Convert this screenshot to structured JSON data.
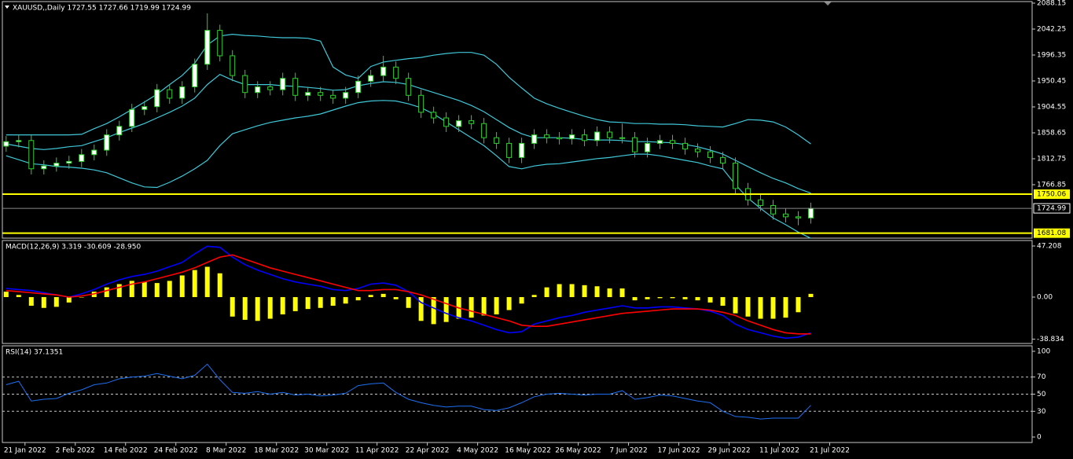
{
  "chart_data": [
    {
      "type": "candlestick",
      "title": "XAUUSD,,Daily  1727.55 1727.66 1719.99 1724.99",
      "xlim": [
        -0.3,
        81.6
      ],
      "ylim": [
        1672.25,
        2090.93
      ],
      "yticks": [
        2088.15,
        2042.25,
        1996.35,
        1950.45,
        1904.55,
        1858.65,
        1812.75,
        1766.85
      ],
      "up_color": "#ffffff",
      "down_color": "#000000",
      "wick_color": "#32cd32",
      "open": [
        1835,
        1843,
        1845,
        1795,
        1800,
        1805,
        1808,
        1820,
        1828,
        1855,
        1870,
        1900,
        1905,
        1935,
        1920,
        1940,
        1980,
        2040,
        1995,
        1960,
        1930,
        1940,
        1935,
        1955,
        1925,
        1930,
        1925,
        1920,
        1930,
        1950,
        1960,
        1975,
        1955,
        1925,
        1895,
        1885,
        1870,
        1880,
        1875,
        1850,
        1840,
        1815,
        1840,
        1855,
        1850,
        1848,
        1855,
        1845,
        1860,
        1850,
        1850,
        1825,
        1840,
        1845,
        1840,
        1830,
        1825,
        1815,
        1805,
        1760,
        1740,
        1730,
        1715,
        1710,
        1708
      ],
      "high": [
        1853,
        1855,
        1855,
        1810,
        1815,
        1818,
        1830,
        1838,
        1865,
        1880,
        1910,
        1915,
        1945,
        1945,
        1950,
        1990,
        2070,
        2050,
        2005,
        1970,
        1950,
        1950,
        1965,
        1965,
        1940,
        1940,
        1935,
        1940,
        1960,
        1970,
        1995,
        1985,
        1965,
        1935,
        1905,
        1895,
        1890,
        1890,
        1885,
        1860,
        1850,
        1850,
        1865,
        1865,
        1860,
        1865,
        1865,
        1870,
        1870,
        1875,
        1860,
        1850,
        1855,
        1855,
        1850,
        1840,
        1835,
        1825,
        1815,
        1770,
        1750,
        1740,
        1725,
        1720,
        1735
      ],
      "low": [
        1825,
        1833,
        1785,
        1785,
        1790,
        1795,
        1798,
        1810,
        1818,
        1845,
        1860,
        1890,
        1895,
        1910,
        1910,
        1930,
        1970,
        1985,
        1950,
        1920,
        1920,
        1925,
        1925,
        1915,
        1915,
        1915,
        1910,
        1910,
        1920,
        1940,
        1950,
        1945,
        1915,
        1885,
        1875,
        1860,
        1860,
        1865,
        1840,
        1830,
        1805,
        1805,
        1830,
        1840,
        1838,
        1838,
        1835,
        1835,
        1840,
        1840,
        1815,
        1815,
        1830,
        1830,
        1820,
        1815,
        1805,
        1795,
        1750,
        1730,
        1720,
        1705,
        1700,
        1695,
        1698
      ],
      "close": [
        1843,
        1845,
        1795,
        1800,
        1805,
        1808,
        1820,
        1828,
        1855,
        1870,
        1900,
        1905,
        1935,
        1920,
        1940,
        1980,
        2040,
        1995,
        1960,
        1930,
        1940,
        1935,
        1955,
        1925,
        1930,
        1925,
        1920,
        1930,
        1950,
        1960,
        1975,
        1955,
        1925,
        1895,
        1885,
        1870,
        1880,
        1875,
        1850,
        1840,
        1815,
        1840,
        1855,
        1850,
        1848,
        1855,
        1845,
        1860,
        1850,
        1850,
        1825,
        1840,
        1845,
        1840,
        1830,
        1825,
        1815,
        1805,
        1760,
        1740,
        1730,
        1715,
        1710,
        1708,
        1725
      ],
      "bands": {
        "color": "#40c8d8",
        "upper": [
          1855,
          1855,
          1855,
          1855,
          1855,
          1855,
          1856,
          1866,
          1875,
          1887,
          1900,
          1913,
          1927,
          1944,
          1960,
          1982,
          2014,
          2030,
          2033,
          2031,
          2030,
          2028,
          2027,
          2027,
          2026,
          2021,
          1975,
          1961,
          1955,
          1976,
          1984,
          1987,
          1990,
          1992,
          1996,
          1999,
          2001,
          2001,
          1996,
          1980,
          1957,
          1938,
          1920,
          1910,
          1902,
          1895,
          1888,
          1882,
          1878,
          1877,
          1875,
          1875,
          1874,
          1874,
          1873,
          1871,
          1870,
          1869,
          1875,
          1882,
          1881,
          1878,
          1869,
          1855,
          1839
        ],
        "middle": [
          1839,
          1835,
          1831,
          1829,
          1831,
          1834,
          1836,
          1843,
          1850,
          1859,
          1867,
          1875,
          1885,
          1895,
          1906,
          1920,
          1944,
          1962,
          1952,
          1944,
          1944,
          1944,
          1942,
          1941,
          1939,
          1937,
          1934,
          1935,
          1942,
          1946,
          1949,
          1948,
          1944,
          1937,
          1930,
          1923,
          1916,
          1907,
          1896,
          1882,
          1868,
          1857,
          1850,
          1850,
          1850,
          1849,
          1847,
          1846,
          1846,
          1845,
          1843,
          1843,
          1842,
          1841,
          1838,
          1834,
          1828,
          1821,
          1810,
          1799,
          1788,
          1778,
          1770,
          1760,
          1752
        ],
        "lower": [
          1818,
          1811,
          1804,
          1802,
          1799,
          1798,
          1796,
          1793,
          1788,
          1779,
          1770,
          1763,
          1762,
          1771,
          1782,
          1795,
          1810,
          1836,
          1857,
          1864,
          1871,
          1877,
          1881,
          1885,
          1888,
          1892,
          1899,
          1906,
          1912,
          1915,
          1916,
          1915,
          1910,
          1903,
          1892,
          1878,
          1864,
          1850,
          1836,
          1818,
          1799,
          1795,
          1800,
          1803,
          1804,
          1807,
          1810,
          1813,
          1815,
          1818,
          1821,
          1821,
          1818,
          1814,
          1810,
          1806,
          1800,
          1795,
          1767,
          1743,
          1725,
          1708,
          1696,
          1683,
          1672
        ]
      },
      "levels": [
        1750.06,
        1681.08
      ],
      "level_color": "#ffff00",
      "last_price": 1724.99
    },
    {
      "type": "macd",
      "title": "MACD(12,26,9) 3.319 -30.609 -28.950",
      "xlim": [
        -0.3,
        81.6
      ],
      "ylim": [
        -42.85,
        52.29
      ],
      "yticks": [
        47.208,
        {
          "value": 0,
          "label": "0.00"
        },
        -38.834
      ],
      "hist_color": "#ffff00",
      "macd_color": "#0000ff",
      "signal_color": "#ff0000",
      "histogram": [
        5,
        2,
        -8,
        -10,
        -9,
        -5,
        0,
        5,
        9,
        12,
        15,
        14,
        13,
        15,
        20,
        25,
        28,
        22,
        -18,
        -21,
        -22,
        -20,
        -16,
        -13,
        -11,
        -10,
        -8,
        -6,
        -3,
        2,
        3,
        -2,
        -10,
        -22,
        -25,
        -23,
        -20,
        -19,
        -17,
        -16,
        -12,
        -6,
        2,
        9,
        12,
        12,
        11,
        10,
        8,
        8,
        -3,
        -2,
        -1,
        -1,
        -2,
        -3,
        -5,
        -8,
        -15,
        -18,
        -20,
        -20,
        -19,
        -14,
        3
      ],
      "macd": [
        8,
        7,
        6,
        4,
        2,
        0,
        3,
        7,
        12,
        16,
        19,
        21,
        24,
        28,
        32,
        40,
        47,
        46,
        37,
        30,
        25,
        21,
        17,
        14,
        12,
        10,
        7,
        6,
        8,
        12,
        13,
        11,
        5,
        -5,
        -10,
        -15,
        -19,
        -22,
        -26,
        -30,
        -33,
        -32,
        -25,
        -22,
        -19,
        -17,
        -14,
        -12,
        -10,
        -8,
        -10,
        -10,
        -9,
        -9,
        -10,
        -11,
        -13,
        -17,
        -25,
        -30,
        -33,
        -36,
        -38,
        -37,
        -33
      ],
      "signal": [
        6,
        5,
        4,
        3,
        2,
        0,
        1,
        3,
        6,
        9,
        12,
        14,
        17,
        20,
        23,
        27,
        32,
        37,
        39,
        35,
        31,
        27,
        24,
        21,
        18,
        15,
        12,
        9,
        6,
        6,
        7,
        7,
        5,
        2,
        -2,
        -6,
        -10,
        -13,
        -16,
        -19,
        -22,
        -26,
        -27,
        -27,
        -25,
        -23,
        -21,
        -19,
        -17,
        -15,
        -14,
        -13,
        -12,
        -11,
        -11,
        -11,
        -12,
        -14,
        -17,
        -22,
        -26,
        -30,
        -33,
        -34,
        -34
      ]
    },
    {
      "type": "rsi",
      "title": "RSI(14) 37.1351",
      "xlim": [
        -0.3,
        81.6
      ],
      "ylim": [
        -6.4,
        106.4
      ],
      "yticks": [
        100,
        70,
        50,
        30,
        0
      ],
      "levels": [
        70,
        50,
        30
      ],
      "color": "#1e6ff0",
      "values": [
        61,
        65,
        42,
        44,
        45,
        51,
        55,
        61,
        63,
        68,
        70,
        71,
        74,
        71,
        68,
        72,
        85,
        67,
        52,
        51,
        53,
        50,
        52,
        49,
        50,
        48,
        49,
        51,
        60,
        62,
        63,
        52,
        44,
        40,
        37,
        35,
        36,
        36,
        32,
        31,
        34,
        40,
        47,
        50,
        51,
        50,
        49,
        50,
        50,
        54,
        44,
        46,
        49,
        48,
        45,
        42,
        40,
        30,
        24,
        23,
        21,
        22,
        22,
        22,
        37
      ],
      "xticks": [
        {
          "value": 1.5,
          "label": "21 Jan 2022"
        },
        {
          "value": 5.5,
          "label": "2 Feb 2022"
        },
        {
          "value": 9.5,
          "label": "14 Feb 2022"
        },
        {
          "value": 13.5,
          "label": "24 Feb 2022"
        },
        {
          "value": 17.5,
          "label": "8 Mar 2022"
        },
        {
          "value": 21.5,
          "label": "18 Mar 2022"
        },
        {
          "value": 25.5,
          "label": "30 Mar 2022"
        },
        {
          "value": 29.5,
          "label": "11 Apr 2022"
        },
        {
          "value": 33.5,
          "label": "22 Apr 2022"
        },
        {
          "value": 37.5,
          "label": "4 May 2022"
        },
        {
          "value": 41.5,
          "label": "16 May 2022"
        },
        {
          "value": 45.5,
          "label": "26 May 2022"
        },
        {
          "value": 49.5,
          "label": "7 Jun 2022"
        },
        {
          "value": 53.5,
          "label": "17 Jun 2022"
        },
        {
          "value": 57.5,
          "label": "29 Jun 2022"
        },
        {
          "value": 61.5,
          "label": "11 Jul 2022"
        },
        {
          "value": 65.5,
          "label": "21 Jul 2022"
        }
      ]
    }
  ]
}
